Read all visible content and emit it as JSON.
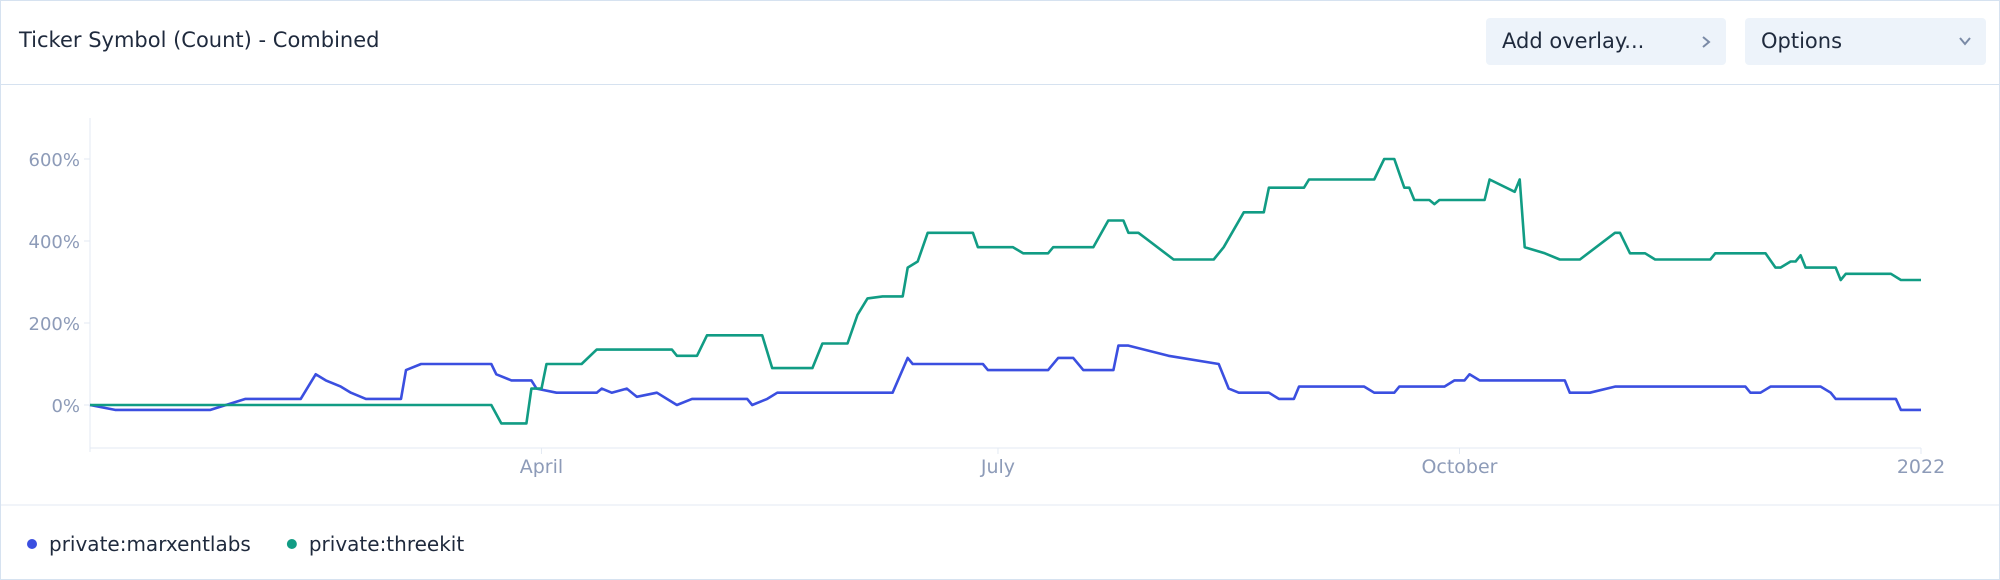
{
  "header": {
    "title": "Ticker Symbol (Count) - Combined",
    "buttons": [
      "Add overlay...",
      "Options"
    ]
  },
  "chart_data": {
    "type": "line",
    "xlim": [
      0,
      365
    ],
    "xticks": [
      {
        "value": 90,
        "label": "April"
      },
      {
        "value": 181,
        "label": "July"
      },
      {
        "value": 273,
        "label": "October"
      },
      {
        "value": 365,
        "label": "2022"
      }
    ],
    "ylim": [
      -100,
      700
    ],
    "yticks": [
      {
        "value": 0,
        "label": "0%"
      },
      {
        "value": 200,
        "label": "200%"
      },
      {
        "value": 400,
        "label": "400%"
      },
      {
        "value": 600,
        "label": "600%"
      }
    ],
    "grid": false,
    "series": [
      {
        "name": "private:marxentlabs",
        "color": "#3b4fe0",
        "x": [
          0,
          5,
          24,
          31,
          42,
          45,
          47,
          50,
          52,
          55,
          62,
          63,
          66,
          80,
          81,
          84,
          88,
          89,
          93,
          101,
          102,
          104,
          107,
          109,
          113,
          115,
          117,
          120,
          131,
          132,
          135,
          137,
          160,
          163,
          164,
          178,
          179,
          191,
          193,
          196,
          198,
          204,
          205,
          207,
          215,
          225,
          227,
          229,
          235,
          237,
          240,
          241,
          254,
          256,
          260,
          261,
          270,
          272,
          274,
          275,
          277,
          294,
          295,
          299,
          304,
          330,
          331,
          333,
          335,
          345,
          347,
          348,
          360,
          361,
          365
        ],
        "values": [
          0,
          -12,
          -12,
          15,
          15,
          75,
          60,
          45,
          30,
          15,
          15,
          85,
          100,
          100,
          75,
          60,
          60,
          40,
          30,
          30,
          40,
          30,
          40,
          20,
          30,
          15,
          0,
          15,
          15,
          0,
          15,
          30,
          30,
          115,
          100,
          100,
          85,
          85,
          115,
          115,
          85,
          85,
          145,
          145,
          120,
          100,
          40,
          30,
          30,
          15,
          15,
          45,
          45,
          30,
          30,
          45,
          45,
          60,
          60,
          75,
          60,
          60,
          30,
          30,
          45,
          45,
          30,
          30,
          45,
          45,
          30,
          15,
          15,
          -12,
          -12
        ]
      },
      {
        "name": "private:threekit",
        "color": "#119c84",
        "x": [
          0,
          80,
          82,
          87,
          88,
          90,
          91,
          98,
          101,
          116,
          117,
          121,
          123,
          134,
          136,
          144,
          146,
          151,
          153,
          155,
          158,
          162,
          163,
          165,
          167,
          176,
          177,
          184,
          186,
          191,
          192,
          200,
          203,
          206,
          207,
          209,
          216,
          224,
          226,
          230,
          234,
          235,
          242,
          243,
          256,
          258,
          260,
          262,
          263,
          264,
          267,
          268,
          269,
          278,
          279,
          284,
          285,
          286,
          290,
          293,
          297,
          304,
          305,
          307,
          310,
          312,
          323,
          324,
          334,
          336,
          337,
          339,
          340,
          341,
          342,
          348,
          349,
          350,
          359,
          361,
          365
        ],
        "values": [
          0,
          0,
          -45,
          -45,
          40,
          40,
          100,
          100,
          135,
          135,
          120,
          120,
          170,
          170,
          90,
          90,
          150,
          150,
          220,
          260,
          265,
          265,
          335,
          350,
          420,
          420,
          385,
          385,
          370,
          370,
          385,
          385,
          450,
          450,
          420,
          420,
          355,
          355,
          385,
          470,
          470,
          530,
          530,
          550,
          550,
          600,
          600,
          530,
          530,
          500,
          500,
          490,
          500,
          500,
          550,
          520,
          550,
          385,
          370,
          355,
          355,
          420,
          420,
          370,
          370,
          355,
          355,
          370,
          370,
          335,
          335,
          350,
          350,
          365,
          335,
          335,
          305,
          320,
          320,
          305,
          305
        ]
      }
    ]
  }
}
